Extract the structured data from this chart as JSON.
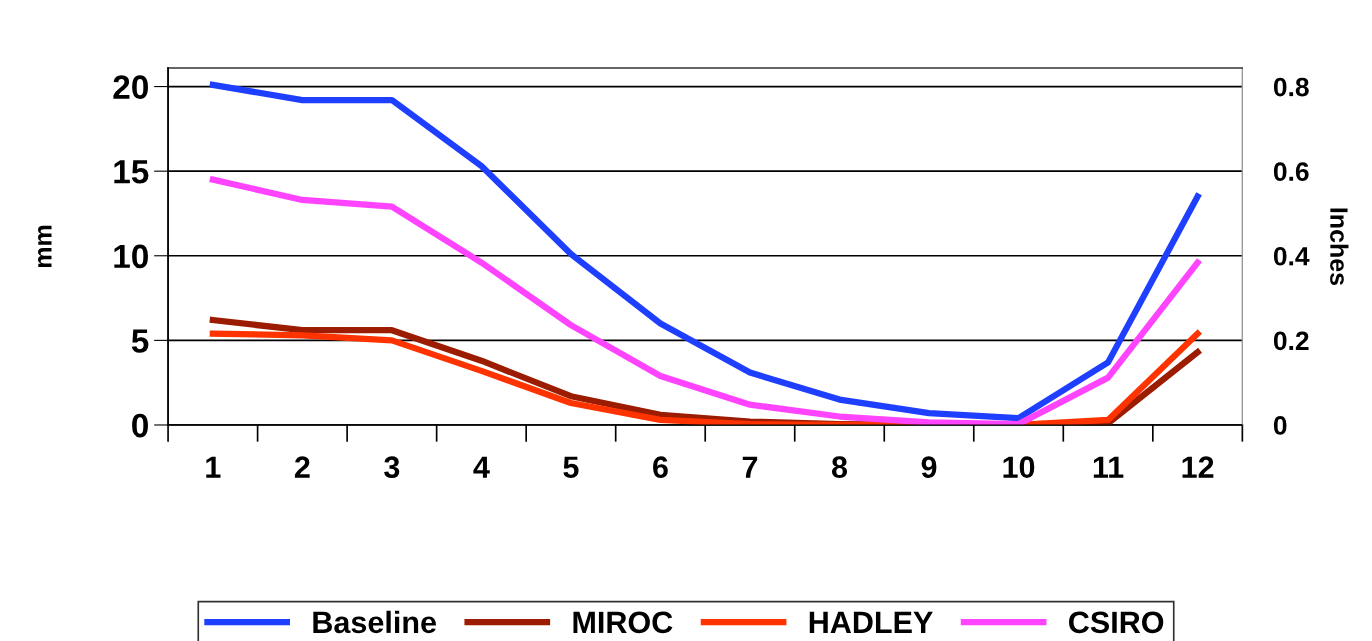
{
  "chart_data": {
    "type": "line",
    "ylabel": "mm",
    "y2label": "Inches",
    "categories": [
      "1",
      "2",
      "3",
      "4",
      "5",
      "6",
      "7",
      "8",
      "9",
      "10",
      "11",
      "12"
    ],
    "series": [
      {
        "name": "Baseline",
        "color": "#1f3fff",
        "values": [
          20.1,
          19.2,
          19.2,
          15.3,
          10.1,
          6.0,
          3.1,
          1.5,
          0.7,
          0.4,
          3.7,
          13.5
        ]
      },
      {
        "name": "MIROC",
        "color": "#9b1c00",
        "values": [
          6.2,
          5.6,
          5.6,
          3.8,
          1.7,
          0.6,
          0.2,
          0.05,
          0,
          0,
          0.1,
          4.3
        ]
      },
      {
        "name": "HADLEY",
        "color": "#ff3300",
        "values": [
          5.4,
          5.3,
          5.0,
          3.2,
          1.3,
          0.3,
          0.05,
          0,
          0,
          0,
          0.3,
          5.4
        ]
      },
      {
        "name": "CSIRO",
        "color": "#ff44ff",
        "values": [
          14.5,
          13.3,
          12.9,
          9.6,
          5.9,
          2.9,
          1.2,
          0.5,
          0.15,
          0.05,
          2.8,
          9.6
        ]
      }
    ],
    "ylim": [
      0,
      21.1
    ],
    "yticks": [
      0,
      5,
      10,
      15,
      20
    ],
    "y2lim": [
      0,
      0.844
    ],
    "y2ticks": [
      0,
      0.2,
      0.4,
      0.6,
      0.8
    ],
    "grid": "y",
    "legend": "bottom",
    "marker": "none",
    "line_style": "solid"
  }
}
